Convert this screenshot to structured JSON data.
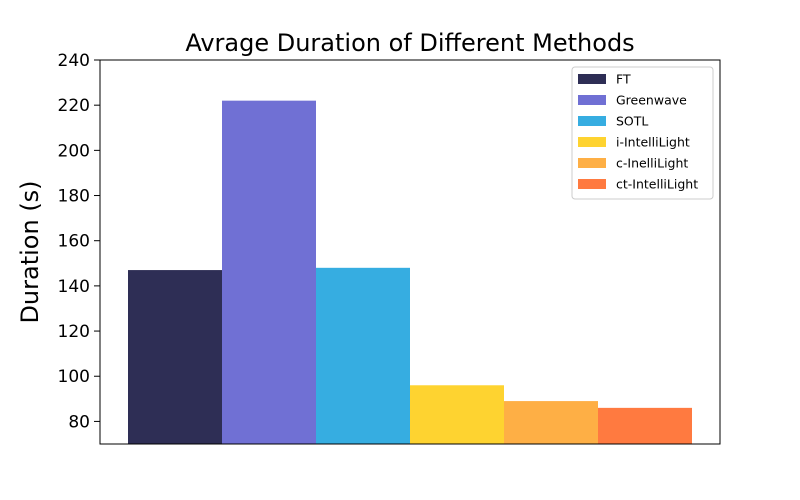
{
  "chart_data": {
    "type": "bar",
    "title": "Avrage Duration of Different Methods",
    "xlabel": "",
    "ylabel": "Duration (s)",
    "ylim": [
      70,
      240
    ],
    "yticks": [
      80,
      100,
      120,
      140,
      160,
      180,
      200,
      220,
      240
    ],
    "grid": false,
    "legend_position": "top-right",
    "series": [
      {
        "name": "FT",
        "value": 147,
        "color": "#2e2e55"
      },
      {
        "name": "Greenwave",
        "value": 222,
        "color": "#7070d4"
      },
      {
        "name": "SOTL",
        "value": 148,
        "color": "#36ade1"
      },
      {
        "name": "i-IntelliLight",
        "value": 96,
        "color": "#fed330"
      },
      {
        "name": "c-InelliLight",
        "value": 89,
        "color": "#feaf45"
      },
      {
        "name": "ct-IntelliLight",
        "value": 86,
        "color": "#ff7a40"
      }
    ]
  }
}
